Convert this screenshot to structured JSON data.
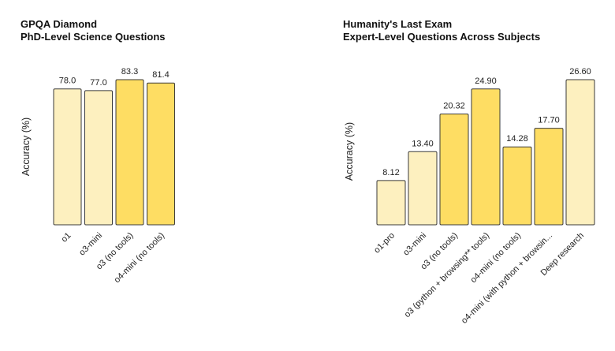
{
  "colors": {
    "light": "#fdf0bf",
    "dark": "#fedd63",
    "stroke": "#3a3a3a"
  },
  "chart_data": [
    {
      "type": "bar",
      "title": "GPQA Diamond",
      "subtitle": "PhD-Level Science Questions",
      "ylabel": "Accuracy (%)",
      "xlabel": "",
      "ylim": [
        0,
        83.3
      ],
      "grid": false,
      "categories": [
        "o1",
        "o3-mini",
        "o3 (no tools)",
        "o4-mini (no tools)"
      ],
      "values": [
        78.0,
        77.0,
        83.3,
        81.4
      ],
      "labels": [
        "78.0",
        "77.0",
        "83.3",
        "81.4"
      ],
      "shades": [
        "light",
        "light",
        "dark",
        "dark"
      ]
    },
    {
      "type": "bar",
      "title": "Humanity's Last Exam",
      "subtitle": "Expert-Level Questions Across Subjects",
      "ylabel": "Accuracy (%)",
      "xlabel": "",
      "ylim": [
        0,
        26.6
      ],
      "grid": false,
      "categories": [
        "o1-pro",
        "o3-mini",
        "o3 (no tools)",
        "o3 (python + browsing** tools)",
        "o4-mini (no tools)",
        "o4-mini (with python + browsin...",
        "Deep research"
      ],
      "values": [
        8.12,
        13.4,
        20.32,
        24.9,
        14.28,
        17.7,
        26.6
      ],
      "labels": [
        "8.12",
        "13.40",
        "20.32",
        "24.90",
        "14.28",
        "17.70",
        "26.60"
      ],
      "shades": [
        "light",
        "light",
        "dark",
        "dark",
        "dark",
        "dark",
        "light"
      ]
    }
  ]
}
